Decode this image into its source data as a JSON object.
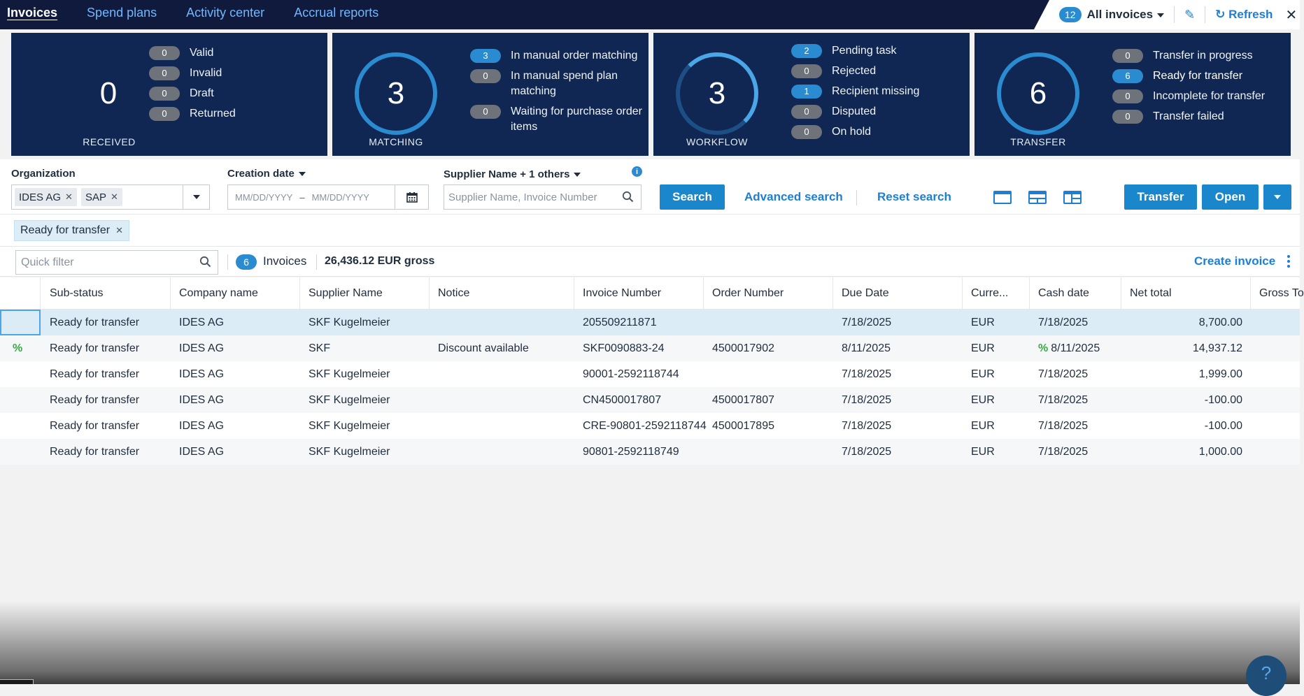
{
  "nav": {
    "tabs": [
      {
        "label": "Invoices",
        "active": true
      },
      {
        "label": "Spend plans",
        "active": false
      },
      {
        "label": "Activity center",
        "active": false
      },
      {
        "label": "Accrual reports",
        "active": false
      }
    ],
    "view_count": "12",
    "view_label": "All invoices",
    "refresh_label": "Refresh",
    "close_label": "✕"
  },
  "tiles": [
    {
      "value": "0",
      "caption": "RECEIVED",
      "ring": "plain",
      "items": [
        {
          "count": "0",
          "label": "Valid",
          "highlight": false
        },
        {
          "count": "0",
          "label": "Invalid",
          "highlight": false
        },
        {
          "count": "0",
          "label": "Draft",
          "highlight": false
        },
        {
          "count": "0",
          "label": "Returned",
          "highlight": false
        }
      ]
    },
    {
      "value": "3",
      "caption": "MATCHING",
      "ring": "ring",
      "items": [
        {
          "count": "3",
          "label": "In manual order matching",
          "highlight": true
        },
        {
          "count": "0",
          "label": "In manual spend plan matching",
          "highlight": false
        },
        {
          "count": "0",
          "label": "Waiting for purchase order items",
          "highlight": false
        }
      ]
    },
    {
      "value": "3",
      "caption": "WORKFLOW",
      "ring": "ringpart",
      "items": [
        {
          "count": "2",
          "label": "Pending task",
          "highlight": true
        },
        {
          "count": "0",
          "label": "Rejected",
          "highlight": false
        },
        {
          "count": "1",
          "label": "Recipient missing",
          "highlight": true
        },
        {
          "count": "0",
          "label": "Disputed",
          "highlight": false
        },
        {
          "count": "0",
          "label": "On hold",
          "highlight": false
        }
      ]
    },
    {
      "value": "6",
      "caption": "TRANSFER",
      "ring": "ring",
      "items": [
        {
          "count": "0",
          "label": "Transfer in progress",
          "highlight": false
        },
        {
          "count": "6",
          "label": "Ready for transfer",
          "highlight": true
        },
        {
          "count": "0",
          "label": "Incomplete for transfer",
          "highlight": false
        },
        {
          "count": "0",
          "label": "Transfer failed",
          "highlight": false
        }
      ]
    }
  ],
  "search": {
    "org_label": "Organization",
    "org_tokens": [
      "IDES AG",
      "SAP"
    ],
    "date_label": "Creation date",
    "date_from_placeholder": "MM/DD/YYYY",
    "date_sep": "–",
    "date_to_placeholder": "MM/DD/YYYY",
    "supplier_label": "Supplier Name + 1 others",
    "supplier_placeholder": "Supplier Name, Invoice Number",
    "search_button": "Search",
    "advanced_link": "Advanced search",
    "reset_link": "Reset search",
    "transfer_button": "Transfer",
    "open_button": "Open"
  },
  "filter_chip": "Ready for transfer",
  "toolbar": {
    "quick_filter_placeholder": "Quick filter",
    "count": "6",
    "count_label": "Invoices",
    "gross_total": "26,436.12 EUR gross",
    "create_invoice": "Create invoice"
  },
  "table": {
    "columns": [
      "",
      "Sub-status",
      "Company name",
      "Supplier Name",
      "Notice",
      "Invoice Number",
      "Order Number",
      "Due Date",
      "Curre...",
      "Cash date",
      "Net total",
      "Gross To"
    ],
    "rows": [
      {
        "icon": "",
        "sub_status": "Ready for transfer",
        "company": "IDES AG",
        "supplier": "SKF Kugelmeier",
        "notice": "",
        "invoice_no": "205509211871",
        "order_no": "",
        "due": "7/18/2025",
        "currency": "EUR",
        "cash_icon": "",
        "cash": "7/18/2025",
        "net": "8,700.00"
      },
      {
        "icon": "%",
        "sub_status": "Ready for transfer",
        "company": "IDES AG",
        "supplier": "SKF",
        "notice": "Discount available",
        "invoice_no": "SKF0090883-24",
        "order_no": "4500017902",
        "due": "8/11/2025",
        "currency": "EUR",
        "cash_icon": "%",
        "cash": "8/11/2025",
        "net": "14,937.12"
      },
      {
        "icon": "",
        "sub_status": "Ready for transfer",
        "company": "IDES AG",
        "supplier": "SKF Kugelmeier",
        "notice": "",
        "invoice_no": "90001-2592118744",
        "order_no": "",
        "due": "7/18/2025",
        "currency": "EUR",
        "cash_icon": "",
        "cash": "7/18/2025",
        "net": "1,999.00"
      },
      {
        "icon": "",
        "sub_status": "Ready for transfer",
        "company": "IDES AG",
        "supplier": "SKF Kugelmeier",
        "notice": "",
        "invoice_no": "CN4500017807",
        "order_no": "4500017807",
        "due": "7/18/2025",
        "currency": "EUR",
        "cash_icon": "",
        "cash": "7/18/2025",
        "net": "-100.00"
      },
      {
        "icon": "",
        "sub_status": "Ready for transfer",
        "company": "IDES AG",
        "supplier": "SKF Kugelmeier",
        "notice": "",
        "invoice_no": "CRE-90801-2592118744",
        "order_no": "4500017895",
        "due": "7/18/2025",
        "currency": "EUR",
        "cash_icon": "",
        "cash": "7/18/2025",
        "net": "-100.00"
      },
      {
        "icon": "",
        "sub_status": "Ready for transfer",
        "company": "IDES AG",
        "supplier": "SKF Kugelmeier",
        "notice": "",
        "invoice_no": "90801-2592118749",
        "order_no": "",
        "due": "7/18/2025",
        "currency": "EUR",
        "cash_icon": "",
        "cash": "7/18/2025",
        "net": "1,000.00"
      }
    ]
  },
  "help_icon": "?"
}
